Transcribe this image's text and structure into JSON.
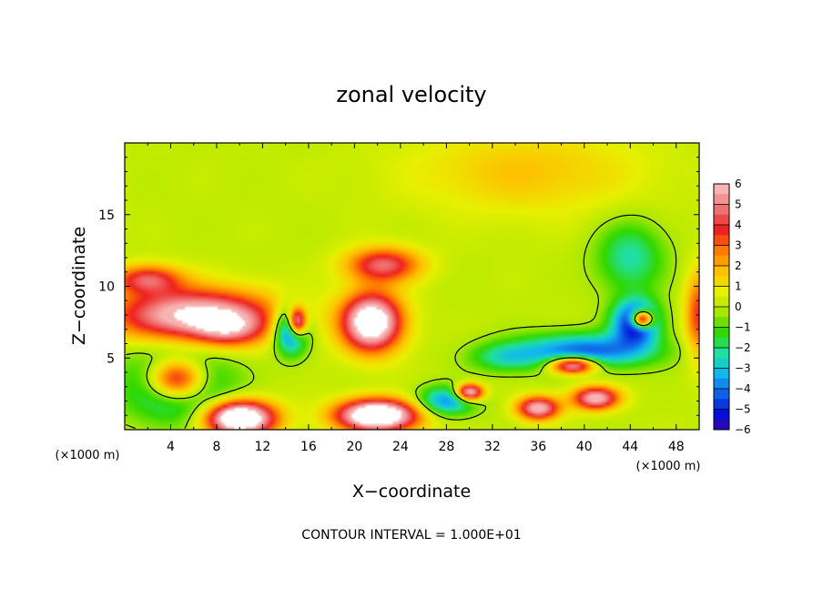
{
  "chart_data": {
    "type": "heatmap",
    "title": "zonal velocity",
    "xlabel": "X−coordinate",
    "ylabel": "Z−coordinate",
    "x_unit_label": "(×1000 m)",
    "z_unit_label": "(×1000 m)",
    "footer": "CONTOUR INTERVAL = 1.000E+01",
    "xlim": [
      0,
      50
    ],
    "ylim": [
      0,
      20
    ],
    "x_ticks": [
      4,
      8,
      12,
      16,
      20,
      24,
      28,
      32,
      36,
      40,
      44,
      48
    ],
    "y_ticks": [
      5,
      10,
      15
    ],
    "colorbar": {
      "ticks": [
        "6",
        "5",
        "4",
        "3",
        "2",
        "1",
        "0",
        "−1",
        "−2",
        "−3",
        "−4",
        "−5",
        "−6"
      ],
      "colors": [
        "#f8b4b4",
        "#f07070",
        "#ee2020",
        "#ff7a00",
        "#ffc000",
        "#e8f000",
        "#a8e800",
        "#30d800",
        "#20e0a0",
        "#10b8f0",
        "#1060e8",
        "#0010d8",
        "#5000a0"
      ],
      "saturation_color": "#ffffff"
    },
    "features": [
      {
        "name": "lower-left positive jet",
        "x": 6,
        "z": 8,
        "sx": 7,
        "sz": 1.8,
        "value": 6.5
      },
      {
        "name": "lower-left positive core",
        "x": 9,
        "z": 7,
        "sx": 3,
        "sz": 1.2,
        "value": 3
      },
      {
        "name": "central positive cell",
        "x": 21.5,
        "z": 7.5,
        "sx": 2.6,
        "sz": 2.0,
        "value": 8
      },
      {
        "name": "upper central positive cap",
        "x": 22.5,
        "z": 11.5,
        "sx": 3.2,
        "sz": 1.2,
        "value": 4.5
      },
      {
        "name": "surface positive cell 4km",
        "x": 4.5,
        "z": 3.5,
        "sx": 2.6,
        "sz": 1.5,
        "value": 8
      },
      {
        "name": "surface negative ring",
        "x": 4.5,
        "z": 3.2,
        "sx": 4.2,
        "sz": 2.4,
        "value": -5
      },
      {
        "name": "negative band 16km",
        "x": 14.5,
        "z": 7,
        "sx": 1.4,
        "sz": 1.6,
        "value": -6
      },
      {
        "name": "positive column 15km",
        "x": 15,
        "z": 7.5,
        "sx": 0.8,
        "sz": 1.0,
        "value": 8
      },
      {
        "name": "negative band east",
        "x": 40,
        "z": 5.5,
        "sx": 6,
        "sz": 1.2,
        "value": -4.5
      },
      {
        "name": "positive eddies east",
        "x": 39,
        "z": 4.5,
        "sx": 2,
        "sz": 0.6,
        "value": 7
      },
      {
        "name": "negative core 45km",
        "x": 44.5,
        "z": 7.5,
        "sx": 2,
        "sz": 1.5,
        "value": -6
      },
      {
        "name": "positive cell 45km",
        "x": 45,
        "z": 7.7,
        "sx": 0.9,
        "sz": 0.6,
        "value": 9
      },
      {
        "name": "surface positive 10km",
        "x": 10,
        "z": 0.8,
        "sx": 3,
        "sz": 1.2,
        "value": 9
      },
      {
        "name": "surface positive 22km",
        "x": 22,
        "z": 1.0,
        "sx": 3.5,
        "sz": 1.1,
        "value": 9
      },
      {
        "name": "surface negative 28km",
        "x": 28,
        "z": 2.0,
        "sx": 2.5,
        "sz": 1.0,
        "value": -4
      },
      {
        "name": "surface positive 30km",
        "x": 30,
        "z": 2.6,
        "sx": 1.2,
        "sz": 0.6,
        "value": 7
      },
      {
        "name": "surface positive 41km",
        "x": 41,
        "z": 2.2,
        "sx": 2,
        "sz": 0.8,
        "value": 6
      },
      {
        "name": "surface positive 36km",
        "x": 36,
        "z": 1.5,
        "sx": 1.8,
        "sz": 0.8,
        "value": 6
      },
      {
        "name": "upper negative east",
        "x": 44,
        "z": 12,
        "sx": 3,
        "sz": 2.5,
        "value": -2.5
      },
      {
        "name": "upper positive west",
        "x": 2,
        "z": 10.5,
        "sx": 3,
        "sz": 1.0,
        "value": 4
      },
      {
        "name": "right edge positive",
        "x": 50,
        "z": 8,
        "sx": 1.2,
        "sz": 3,
        "value": 3.5
      },
      {
        "name": "upper yellow region",
        "x": 35,
        "z": 18,
        "sx": 10,
        "sz": 3,
        "value": 1.5
      },
      {
        "name": "mid negative 32km",
        "x": 33,
        "z": 5,
        "sx": 3,
        "sz": 1,
        "value": -2
      }
    ]
  }
}
